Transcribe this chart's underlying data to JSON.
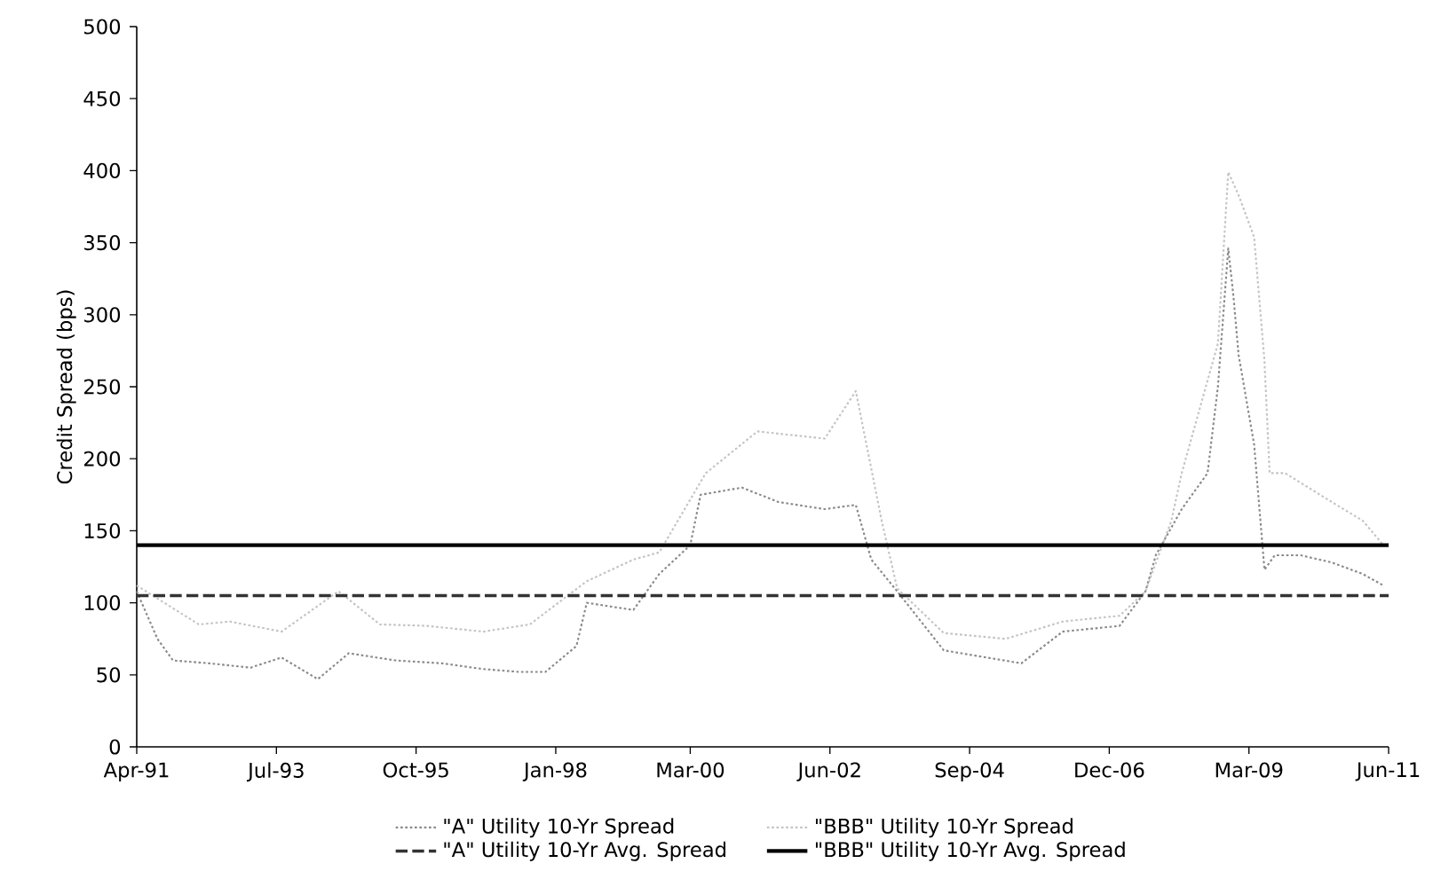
{
  "chart_data": {
    "type": "line",
    "ylabel": "Credit Spread (bps)",
    "xlim": [
      "1991-04",
      "2011-06"
    ],
    "ylim": [
      0,
      500
    ],
    "xticks": [
      {
        "value": "1991-04",
        "label": "Apr-91"
      },
      {
        "value": "1993-07",
        "label": "Jul-93"
      },
      {
        "value": "1995-10",
        "label": "Oct-95"
      },
      {
        "value": "1998-01",
        "label": "Jan-98"
      },
      {
        "value": "2000-03",
        "label": "Mar-00"
      },
      {
        "value": "2002-06",
        "label": "Jun-02"
      },
      {
        "value": "2004-09",
        "label": "Sep-04"
      },
      {
        "value": "2006-12",
        "label": "Dec-06"
      },
      {
        "value": "2009-03",
        "label": "Mar-09"
      },
      {
        "value": "2011-06",
        "label": "Jun-11"
      }
    ],
    "yticks": [
      0,
      50,
      100,
      150,
      200,
      250,
      300,
      350,
      400,
      450,
      500
    ],
    "grid": false,
    "legend": "bottom",
    "marker": "none",
    "series": [
      {
        "name": "\"A\" Utility 10-Yr Spread",
        "color": "#8a8a8a",
        "line_style": "dotted",
        "x": [
          "1991-04",
          "1991-08",
          "1991-11",
          "1992-06",
          "1993-02",
          "1993-08",
          "1994-03",
          "1994-09",
          "1995-06",
          "1996-03",
          "1996-11",
          "1997-06",
          "1997-11",
          "1998-05",
          "1998-07",
          "1999-04",
          "1999-09",
          "2000-03",
          "2000-05",
          "2001-01",
          "2001-08",
          "2002-05",
          "2002-11",
          "2003-02",
          "2003-07",
          "2004-04",
          "2005-07",
          "2006-03",
          "2007-02",
          "2007-07",
          "2007-09",
          "2008-02",
          "2008-07",
          "2008-09",
          "2008-11",
          "2008-12",
          "2009-01",
          "2009-04",
          "2009-06",
          "2009-08",
          "2010-01",
          "2010-07",
          "2011-01",
          "2011-05"
        ],
        "values": [
          108,
          75,
          60,
          58,
          55,
          62,
          47,
          65,
          60,
          58,
          54,
          52,
          52,
          70,
          100,
          95,
          120,
          140,
          175,
          180,
          170,
          165,
          168,
          130,
          108,
          67,
          58,
          80,
          84,
          108,
          133,
          165,
          190,
          250,
          346,
          313,
          272,
          210,
          123,
          133,
          133,
          128,
          120,
          112
        ]
      },
      {
        "name": "\"BBB\" Utility 10-Yr Spread",
        "color": "#c4c4c4",
        "line_style": "dotted",
        "x": [
          "1991-04",
          "1992-04",
          "1992-10",
          "1993-08",
          "1994-07",
          "1995-03",
          "1995-12",
          "1996-11",
          "1997-08",
          "1998-07",
          "1999-04",
          "1999-09",
          "2000-06",
          "2001-04",
          "2002-05",
          "2002-11",
          "2003-04",
          "2003-07",
          "2004-04",
          "2005-04",
          "2006-03",
          "2007-02",
          "2007-07",
          "2007-12",
          "2008-02",
          "2008-09",
          "2008-11",
          "2009-01",
          "2009-04",
          "2009-06",
          "2009-07",
          "2009-10",
          "2010-07",
          "2011-01",
          "2011-05"
        ],
        "values": [
          112,
          85,
          87,
          80,
          108,
          85,
          84,
          80,
          85,
          115,
          130,
          135,
          190,
          219,
          214,
          247,
          157,
          110,
          79,
          75,
          87,
          91,
          108,
          157,
          190,
          280,
          399,
          383,
          354,
          268,
          190,
          190,
          170,
          157,
          140
        ]
      },
      {
        "name": "\"A\" Utility 10-Yr Avg. Spread",
        "color": "#333333",
        "line_style": "dashed",
        "x": [
          "1991-04",
          "2011-06"
        ],
        "values": [
          105,
          105
        ]
      },
      {
        "name": "\"BBB\" Utility 10-Yr Avg. Spread",
        "color": "#000000",
        "line_style": "solid",
        "x": [
          "1991-04",
          "2011-06"
        ],
        "values": [
          140,
          140
        ]
      }
    ]
  }
}
